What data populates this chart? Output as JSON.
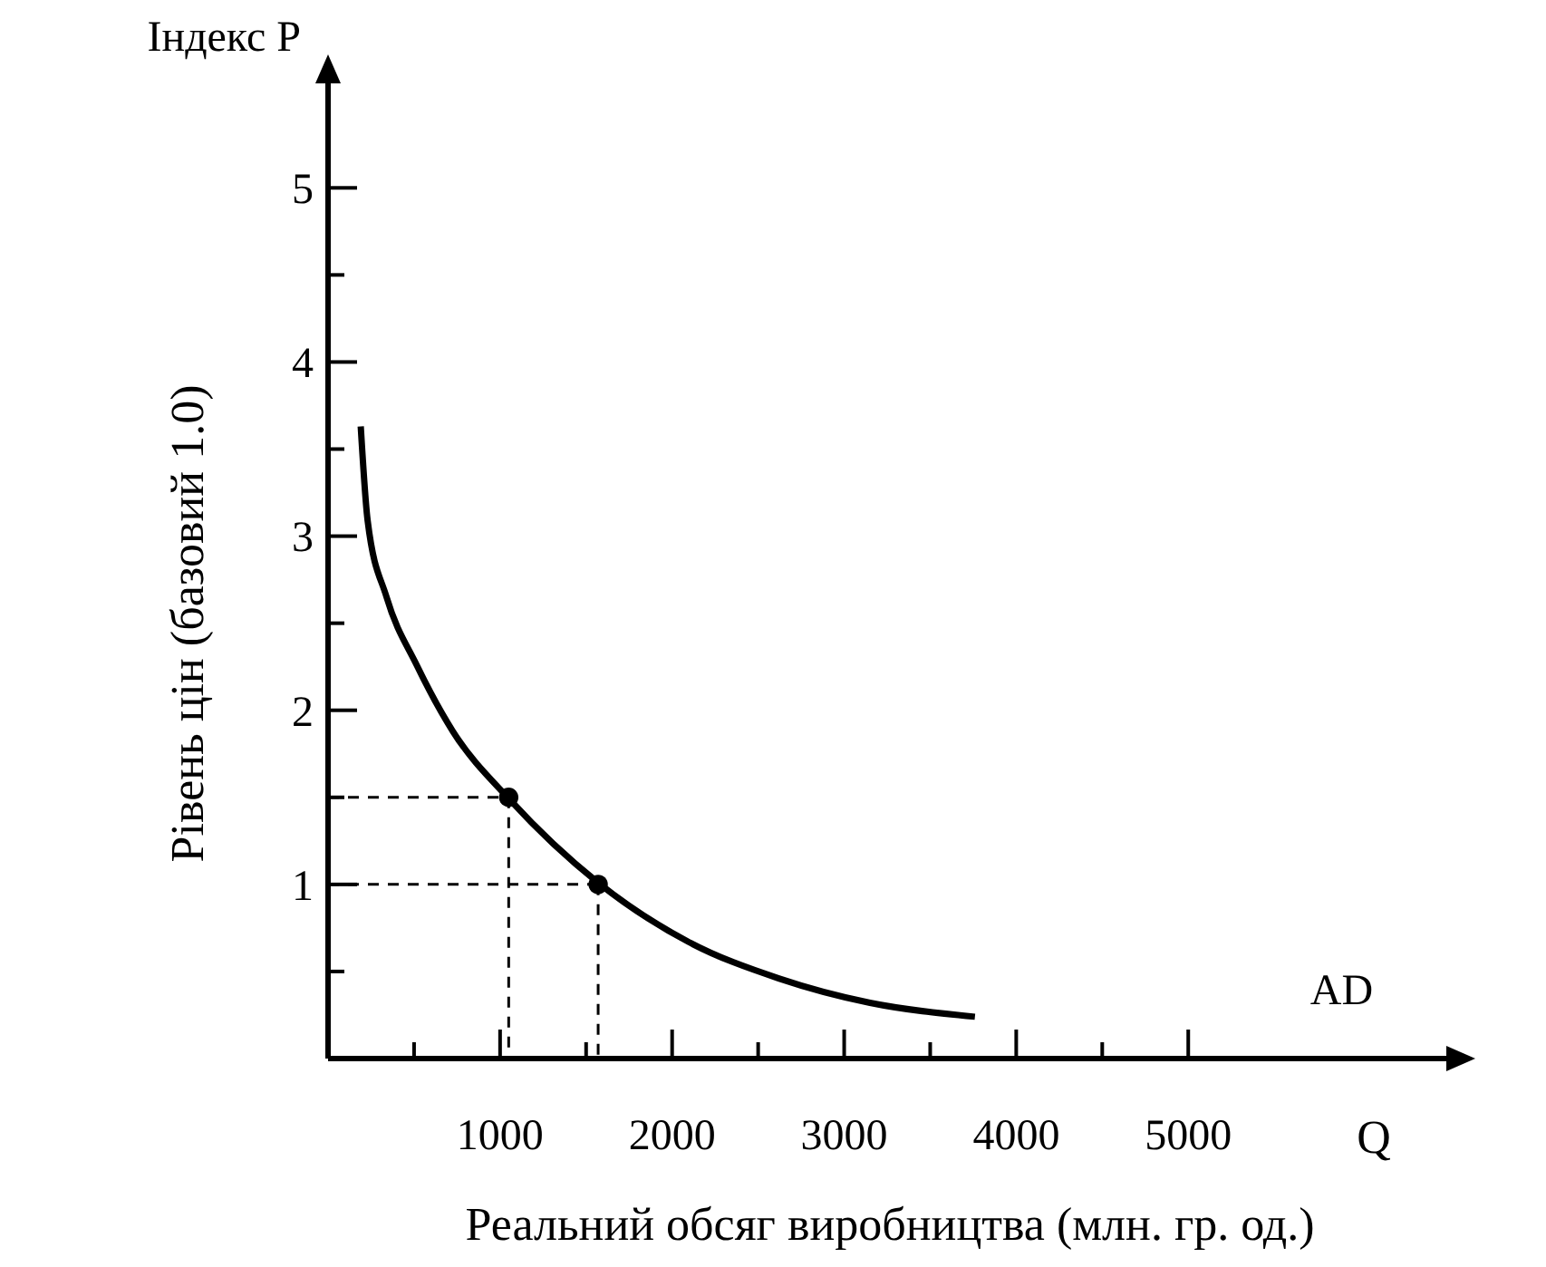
{
  "chart_data": {
    "type": "line",
    "xlabel": "Реальний обсяг виробництва (млн. гр. од.)",
    "ylabel": "Рівень цін (базовий 1.0)",
    "annotations": [
      "Індекс P",
      "Q"
    ],
    "xlim": [
      0,
      6500
    ],
    "ylim": [
      0,
      5.6
    ],
    "xticks": [
      {
        "value": 500,
        "label": null
      },
      1000,
      {
        "value": 1500,
        "label": null
      },
      2000,
      {
        "value": 2500,
        "label": null
      },
      3000,
      {
        "value": 3500,
        "label": null
      },
      4000,
      {
        "value": 4500,
        "label": null
      },
      5000
    ],
    "yticks": [
      {
        "value": 0.5,
        "label": null
      },
      1,
      {
        "value": 1.5,
        "label": null
      },
      2,
      {
        "value": 2.5,
        "label": null
      },
      3,
      {
        "value": 3.5,
        "label": null
      },
      4,
      {
        "value": 4.5,
        "label": null
      },
      5
    ],
    "grid": false,
    "legend": false,
    "series": [
      {
        "name": "AD",
        "color": "#000000",
        "line_style": "solid",
        "marker": "none",
        "x": [
          190,
          230,
          340,
          515,
          725,
          1063,
          1570,
          2095,
          2620,
          3150,
          3760
        ],
        "values": [
          3.63,
          3.09,
          2.65,
          2.26,
          1.88,
          1.48,
          1.01,
          0.67,
          0.46,
          0.32,
          0.24
        ]
      },
      {
        "type": "scatter",
        "color": "#000000",
        "marker": "circle",
        "x": [
          1050,
          1570
        ],
        "values": [
          1.5,
          1.0
        ]
      }
    ]
  }
}
